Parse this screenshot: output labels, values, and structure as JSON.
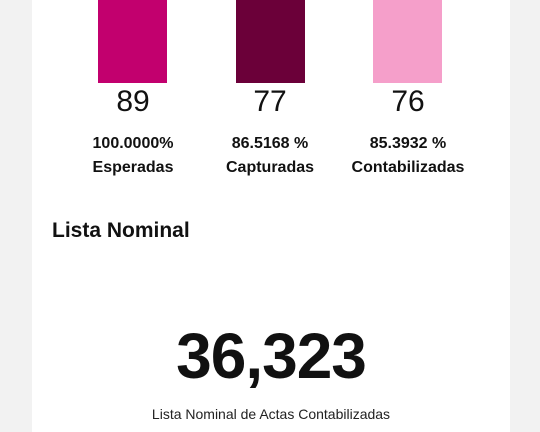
{
  "stats": [
    {
      "count": "89",
      "percent": "100.0000%",
      "label": "Esperadas",
      "color": "#c2006e",
      "fill": 1.0
    },
    {
      "count": "77",
      "percent": "86.5168 %",
      "label": "Capturadas",
      "color": "#6b0039",
      "fill": 0.865168
    },
    {
      "count": "76",
      "percent": "85.3932 %",
      "label": "Contabilizadas",
      "color": "#f59fca",
      "fill": 0.853932
    }
  ],
  "lista_nominal": {
    "title": "Lista Nominal",
    "value": "36,323",
    "caption": "Lista Nominal de Actas Contabilizadas"
  }
}
